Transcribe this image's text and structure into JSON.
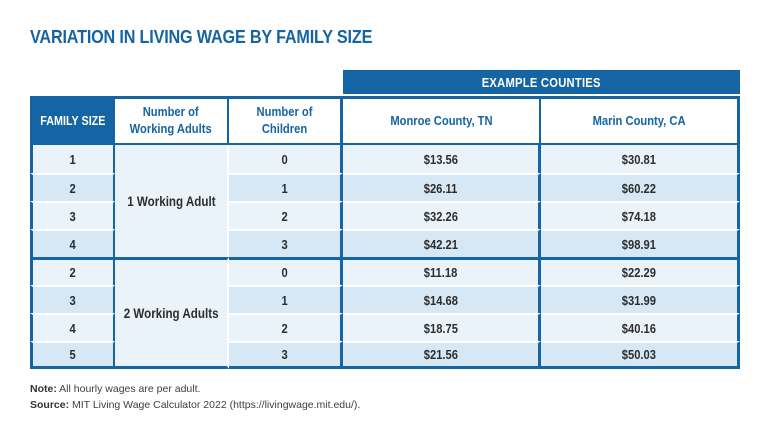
{
  "title": "VARIATION IN LIVING WAGE BY FAMILY SIZE",
  "colors": {
    "primary_blue": "#1564A4",
    "row_light": "#EAF3FA",
    "row_dark": "#D6E8F5",
    "body_text": "#2D2D2D",
    "note_text": "#404040"
  },
  "table": {
    "example_counties_header": "EXAMPLE COUNTIES",
    "columns": {
      "family_size": "FAMILY SIZE",
      "working_adults": "Number of\nWorking Adults",
      "children": "Number of\nChildren",
      "county_1": "Monroe County, TN",
      "county_2": "Marin County, CA"
    },
    "groups": [
      {
        "working_adults_label": "1 Working Adult",
        "rows": [
          {
            "family_size": "1",
            "children": "0",
            "monroe": "$13.56",
            "marin": "$30.81"
          },
          {
            "family_size": "2",
            "children": "1",
            "monroe": "$26.11",
            "marin": "$60.22"
          },
          {
            "family_size": "3",
            "children": "2",
            "monroe": "$32.26",
            "marin": "$74.18"
          },
          {
            "family_size": "4",
            "children": "3",
            "monroe": "$42.21",
            "marin": "$98.91"
          }
        ]
      },
      {
        "working_adults_label": "2 Working Adults",
        "rows": [
          {
            "family_size": "2",
            "children": "0",
            "monroe": "$11.18",
            "marin": "$22.29"
          },
          {
            "family_size": "3",
            "children": "1",
            "monroe": "$14.68",
            "marin": "$31.99"
          },
          {
            "family_size": "4",
            "children": "2",
            "monroe": "$18.75",
            "marin": "$40.16"
          },
          {
            "family_size": "5",
            "children": "3",
            "monroe": "$21.56",
            "marin": "$50.03"
          }
        ]
      }
    ]
  },
  "notes": [
    {
      "label": "Note:",
      "text": " All hourly wages are per adult."
    },
    {
      "label": "Source:",
      "text": " MIT Living Wage Calculator 2022 (https://livingwage.mit.edu/)."
    }
  ],
  "chart_data": {
    "type": "table",
    "title": "VARIATION IN LIVING WAGE BY FAMILY SIZE",
    "columns": [
      "Family Size",
      "Number of Working Adults",
      "Number of Children",
      "Monroe County, TN",
      "Marin County, CA"
    ],
    "rows": [
      [
        1,
        "1 Working Adult",
        0,
        13.56,
        30.81
      ],
      [
        2,
        "1 Working Adult",
        1,
        26.11,
        60.22
      ],
      [
        3,
        "1 Working Adult",
        2,
        32.26,
        74.18
      ],
      [
        4,
        "1 Working Adult",
        3,
        42.21,
        98.91
      ],
      [
        2,
        "2 Working Adults",
        0,
        11.18,
        22.29
      ],
      [
        3,
        "2 Working Adults",
        1,
        14.68,
        31.99
      ],
      [
        4,
        "2 Working Adults",
        2,
        18.75,
        40.16
      ],
      [
        5,
        "2 Working Adults",
        3,
        21.56,
        50.03
      ]
    ],
    "units": "USD hourly wage per adult"
  }
}
